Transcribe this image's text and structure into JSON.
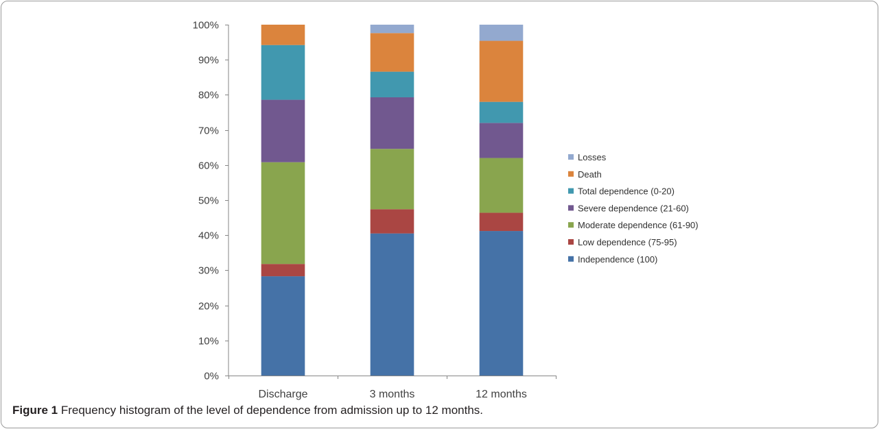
{
  "chart_data": {
    "type": "bar",
    "stacked": true,
    "categories": [
      "Discharge",
      "3 months",
      "12 months"
    ],
    "y_ticks": [
      "0%",
      "10%",
      "20%",
      "30%",
      "40%",
      "50%",
      "60%",
      "70%",
      "80%",
      "90%",
      "100%"
    ],
    "ylim": [
      0,
      100
    ],
    "legend_position": "right",
    "series": [
      {
        "name": "Independence (100)",
        "color": "#4572a7",
        "values": [
          28.3,
          40.5,
          41.2
        ]
      },
      {
        "name": "Low dependence  (75-95)",
        "color": "#aa4643",
        "values": [
          3.5,
          6.9,
          5.2
        ]
      },
      {
        "name": "Moderate dependence (61-90)",
        "color": "#89a54e",
        "values": [
          29.0,
          17.2,
          15.6
        ]
      },
      {
        "name": "Severe dependence (21-60)",
        "color": "#71588f",
        "values": [
          17.8,
          14.7,
          10.0
        ]
      },
      {
        "name": "Total dependence (0-20)",
        "color": "#4198af",
        "values": [
          15.6,
          7.3,
          6.0
        ]
      },
      {
        "name": "Death",
        "color": "#db843d",
        "values": [
          5.8,
          11.0,
          17.4
        ]
      },
      {
        "name": "Losses",
        "color": "#93a9cf",
        "values": [
          0,
          2.4,
          4.6
        ]
      }
    ]
  },
  "caption": {
    "label": "Figure 1",
    "text": " Frequency histogram of the level of dependence from admission up to 12 months."
  }
}
